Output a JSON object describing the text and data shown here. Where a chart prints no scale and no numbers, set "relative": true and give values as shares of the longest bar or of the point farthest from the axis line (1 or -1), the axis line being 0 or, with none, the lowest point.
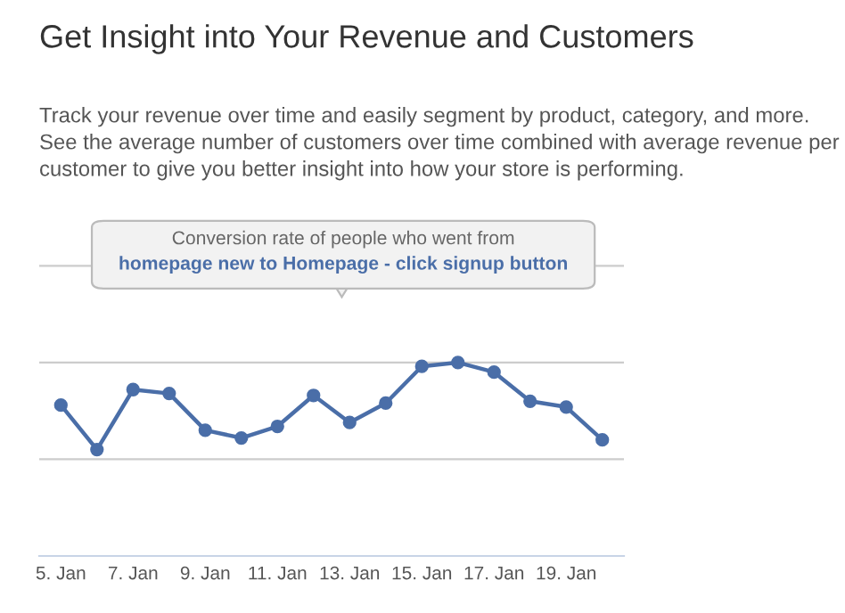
{
  "chart_data": {
    "type": "line",
    "title": "Get Insight into Your Revenue and Customers",
    "subtitle": "Track your revenue over time and easily segment by product, category, and more. See the average number of customers over time combined with average revenue per customer to give you better insight into how your store is performing.",
    "annotations": [
      "Conversion rate of people who went from",
      "homepage new to Homepage - click signup button"
    ],
    "categories": [
      "5. Jan",
      null,
      "7. Jan",
      null,
      "9. Jan",
      null,
      "11. Jan",
      null,
      "13. Jan",
      null,
      "15. Jan",
      null,
      "17. Jan",
      null,
      "19. Jan",
      null
    ],
    "relative": true,
    "series": [
      {
        "color": "#4a6ea8",
        "values": [
          0.78,
          0.55,
          0.86,
          0.84,
          0.65,
          0.61,
          0.67,
          0.83,
          0.69,
          0.79,
          0.98,
          1,
          0.95,
          0.8,
          0.77,
          0.6
        ]
      }
    ],
    "ref_lines": [
      {
        "axis": "y",
        "value": 0.5,
        "color": "#cccccc"
      },
      {
        "axis": "y",
        "value": 1.0,
        "color": "#cccccc"
      },
      {
        "axis": "y",
        "value": 1.5,
        "color": "#cccccc"
      }
    ],
    "marker": "circle",
    "line_style": "solid"
  }
}
